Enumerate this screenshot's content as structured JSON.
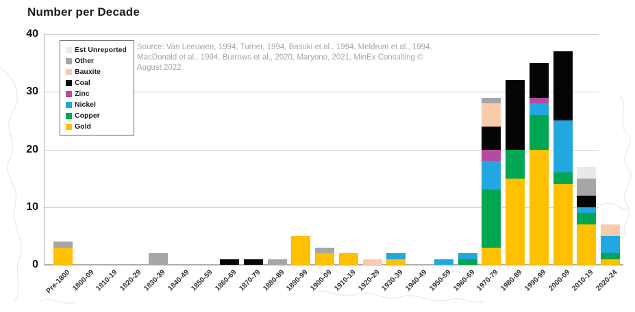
{
  "title": "Number per Decade",
  "source_note": "Source: Van Leeuwen, 1994, Turner, 1994, Basuki et al., 1994, Meldrum et al., 1994, MacDonald et al., 1994, Burrows et al., 2020, Maryono, 2021, MinEx Consulting © August 2022",
  "chart_data": {
    "type": "bar",
    "stacked": true,
    "title": "Number per Decade",
    "xlabel": "",
    "ylabel": "",
    "ylim": [
      0,
      40
    ],
    "yticks": [
      0,
      10,
      20,
      30,
      40
    ],
    "grid": "horizontal",
    "legend_position": "inside-top-left",
    "legend_order": [
      "Est Unreported",
      "Other",
      "Bauxite",
      "Coal",
      "Zinc",
      "Nickel",
      "Copper",
      "Gold"
    ],
    "colors": {
      "Est Unreported": "#e9e9e9",
      "Other": "#a6a6a6",
      "Bauxite": "#f8cbad",
      "Coal": "#050505",
      "Zinc": "#b54a9f",
      "Nickel": "#22a7e0",
      "Copper": "#00a651",
      "Gold": "#ffc000"
    },
    "categories": [
      "Pre-1800",
      "1800-09",
      "1810-19",
      "1820-29",
      "1830-39",
      "1840-49",
      "1850-59",
      "1860-69",
      "1870-79",
      "1880-89",
      "1890-99",
      "1900-09",
      "1910-19",
      "1920-29",
      "1930-39",
      "1940-49",
      "1950-59",
      "1960-69",
      "1970-79",
      "1980-89",
      "1990-99",
      "2000-09",
      "2010-19",
      "2020-24"
    ],
    "series": [
      {
        "name": "Gold",
        "values": [
          3,
          0,
          0,
          0,
          0,
          0,
          0,
          0,
          0,
          0,
          5,
          2,
          2,
          0,
          1,
          0,
          0,
          0,
          3,
          15,
          20,
          14,
          7,
          1
        ]
      },
      {
        "name": "Copper",
        "values": [
          0,
          0,
          0,
          0,
          0,
          0,
          0,
          0,
          0,
          0,
          0,
          0,
          0,
          0,
          0,
          0,
          0,
          1,
          10,
          5,
          6,
          2,
          2,
          1
        ]
      },
      {
        "name": "Nickel",
        "values": [
          0,
          0,
          0,
          0,
          0,
          0,
          0,
          0,
          0,
          0,
          0,
          0,
          0,
          0,
          1,
          0,
          1,
          1,
          5,
          0,
          2,
          9,
          1,
          3
        ]
      },
      {
        "name": "Zinc",
        "values": [
          0,
          0,
          0,
          0,
          0,
          0,
          0,
          0,
          0,
          0,
          0,
          0,
          0,
          0,
          0,
          0,
          0,
          0,
          2,
          0,
          1,
          0,
          0,
          0
        ]
      },
      {
        "name": "Coal",
        "values": [
          0,
          0,
          0,
          0,
          0,
          0,
          0,
          1,
          1,
          0,
          0,
          0,
          0,
          0,
          0,
          0,
          0,
          0,
          4,
          12,
          6,
          12,
          2,
          0
        ]
      },
      {
        "name": "Bauxite",
        "values": [
          0,
          0,
          0,
          0,
          0,
          0,
          0,
          0,
          0,
          0,
          0,
          0,
          0,
          1,
          0,
          0,
          0,
          0,
          4,
          0,
          0,
          0,
          0,
          2
        ]
      },
      {
        "name": "Other",
        "values": [
          1,
          0,
          0,
          0,
          2,
          0,
          0,
          0,
          0,
          1,
          0,
          1,
          0,
          0,
          0,
          0,
          0,
          0,
          1,
          0,
          0,
          0,
          3,
          0
        ]
      },
      {
        "name": "Est Unreported",
        "values": [
          0,
          0,
          0,
          0,
          0,
          0,
          0,
          0,
          0,
          0,
          0,
          0,
          0,
          0,
          0,
          0,
          0,
          0,
          0,
          0,
          0,
          0,
          2,
          0
        ]
      }
    ],
    "totals": [
      4,
      0,
      0,
      0,
      2,
      0,
      0,
      1,
      1,
      1,
      5,
      3,
      2,
      1,
      2,
      0,
      1,
      2,
      29,
      32,
      35,
      37,
      17,
      7
    ]
  }
}
